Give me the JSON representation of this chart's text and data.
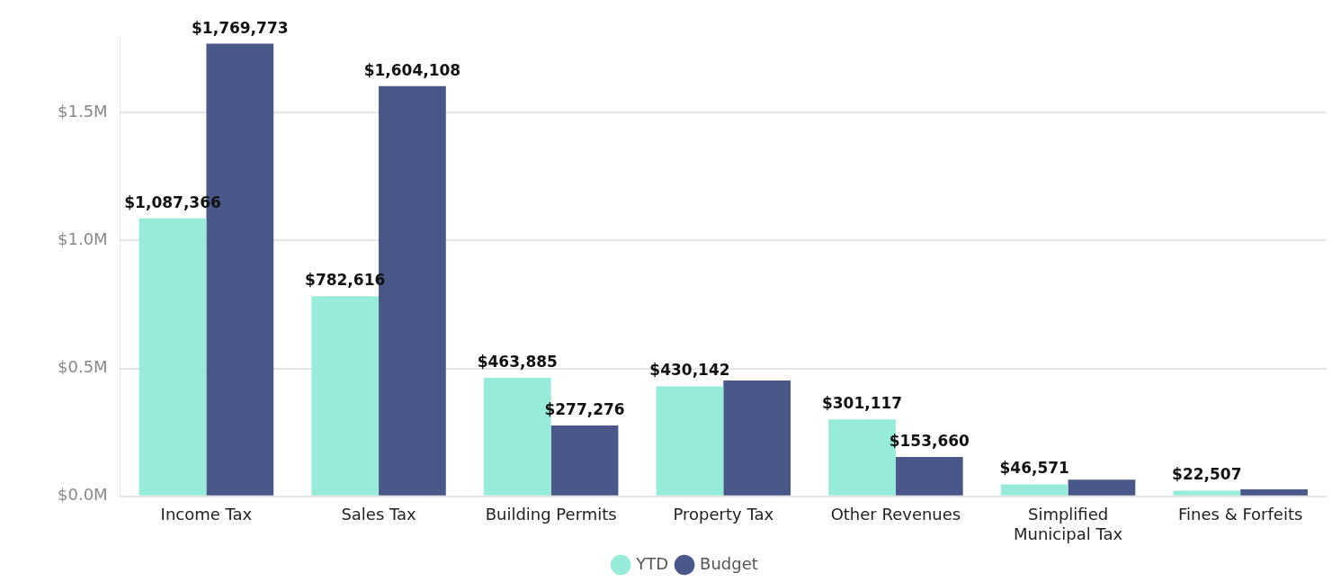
{
  "chart_data": {
    "type": "bar",
    "categories": [
      "Income Tax",
      "Sales Tax",
      "Building Permits",
      "Property Tax",
      "Other Revenues",
      "Simplified Municipal Tax",
      "Fines & Forfeits"
    ],
    "series": [
      {
        "name": "YTD",
        "color": "#96ecd9",
        "values": [
          1087366,
          782616,
          463885,
          430142,
          301117,
          46571,
          22507
        ],
        "value_labels": [
          "$1,087,366",
          "$782,616",
          "$463,885",
          "$430,142",
          "$301,117",
          "$46,571",
          "$22,507"
        ]
      },
      {
        "name": "Budget",
        "color": "#4a5889",
        "values": [
          1769773,
          1604108,
          277276,
          453000,
          153660,
          65000,
          27000
        ],
        "value_labels": [
          "$1,769,773",
          "$1,604,108",
          "$277,276",
          null,
          "$153,660",
          null,
          null
        ]
      }
    ],
    "ylim": [
      0,
      1800000
    ],
    "yticks": [
      {
        "value": 0,
        "label": "$0.0M"
      },
      {
        "value": 500000,
        "label": "$0.5M"
      },
      {
        "value": 1000000,
        "label": "$1.0M"
      },
      {
        "value": 1500000,
        "label": "$1.5M"
      }
    ],
    "grid": "y",
    "legend": "bottom"
  }
}
